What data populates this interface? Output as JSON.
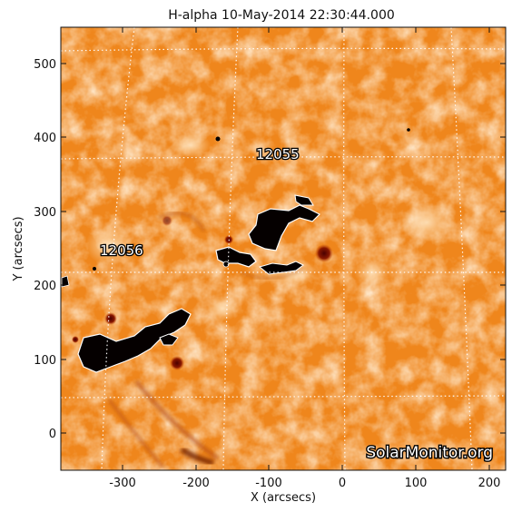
{
  "title": "H-alpha 10-May-2014 22:30:44.000",
  "xaxis": {
    "label": "X (arcsecs)",
    "ticks": [
      "-300",
      "-200",
      "-100",
      "0",
      "100",
      "200"
    ]
  },
  "yaxis": {
    "label": "Y (arcsecs)",
    "ticks": [
      "0",
      "100",
      "200",
      "300",
      "400",
      "500"
    ]
  },
  "regions": [
    {
      "id": "12055"
    },
    {
      "id": "12056"
    }
  ],
  "watermark": "SolarMonitor.org",
  "colors": {
    "background": "#ffffff",
    "solar_base": "#f28a1e",
    "solar_light": "#ffd9a8",
    "sunspot": "#050000",
    "grid": "#ffffff"
  }
}
